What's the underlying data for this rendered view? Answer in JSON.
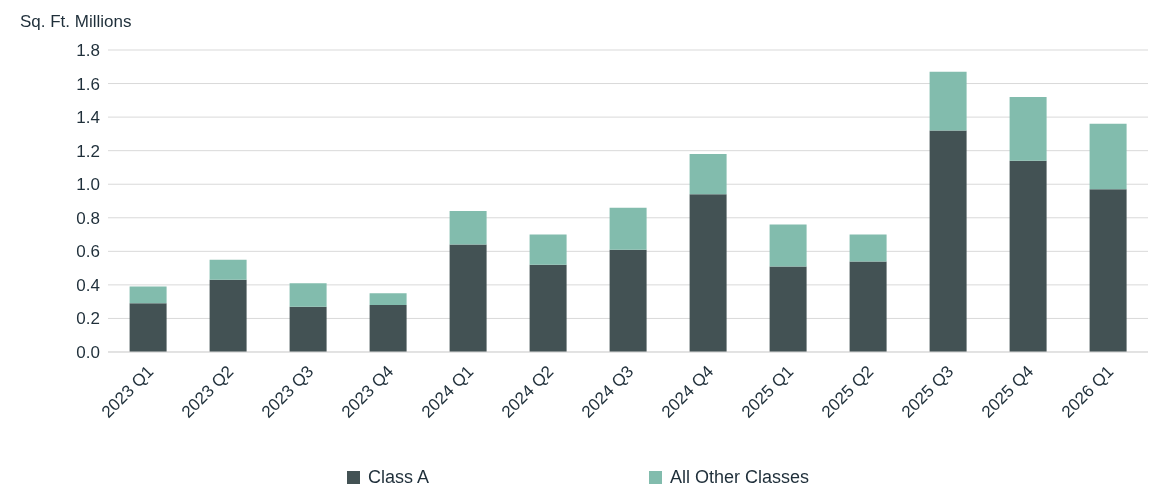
{
  "chart_data": {
    "type": "bar",
    "ylabel": "Sq. Ft. Millions",
    "stacked": true,
    "categories": [
      "2023 Q1",
      "2023 Q2",
      "2023 Q3",
      "2023 Q4",
      "2024 Q1",
      "2024 Q2",
      "2024 Q3",
      "2024 Q4",
      "2025 Q1",
      "2025 Q2",
      "2025 Q3",
      "2025 Q4",
      "2026 Q1"
    ],
    "series": [
      {
        "name": "Class A",
        "color": "#435254",
        "values": [
          0.29,
          0.43,
          0.27,
          0.28,
          0.64,
          0.52,
          0.61,
          0.94,
          0.51,
          0.54,
          1.32,
          1.14,
          0.97
        ]
      },
      {
        "name": "All Other Classes",
        "color": "#82bcad",
        "values": [
          0.1,
          0.12,
          0.14,
          0.07,
          0.2,
          0.18,
          0.25,
          0.24,
          0.25,
          0.16,
          0.35,
          0.38,
          0.39
        ]
      }
    ],
    "ylim": [
      0,
      1.8
    ],
    "yticks": [
      {
        "value": 0,
        "label": "0.0"
      },
      0.2,
      0.4,
      0.6,
      0.8,
      {
        "value": 1,
        "label": "1.0"
      },
      1.2,
      1.4,
      1.6,
      1.8
    ],
    "grid": "y",
    "legend": "bottom"
  }
}
